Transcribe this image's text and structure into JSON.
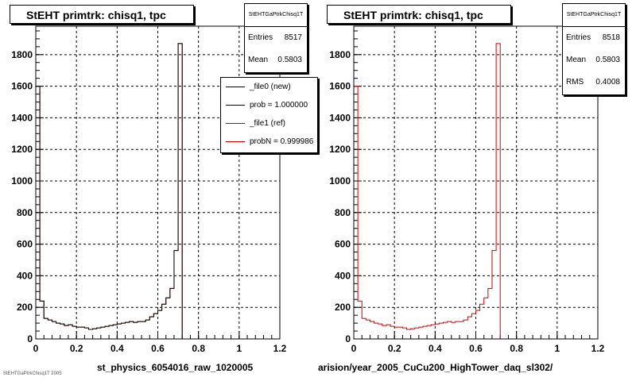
{
  "panels": [
    {
      "title": "StEHT primtrk: chisq1, tpc",
      "stats": {
        "name": "StEHTGaPtrkChisq1T",
        "rows": [
          {
            "label": "Entries",
            "value": "8517"
          },
          {
            "label": "Mean",
            "value": "0.5803"
          }
        ]
      },
      "x_caption": "st_physics_6054016_raw_1020005",
      "legend": [
        {
          "label": "_file0 (new)",
          "color": "#000000"
        },
        {
          "label": "prob = 1.000000",
          "color": "#000000"
        },
        {
          "label": "_file1 (ref)",
          "color": "#cc0000"
        },
        {
          "label": "probN = 0.999986",
          "color": "#cc0000"
        }
      ]
    },
    {
      "title": "StEHT primtrk: chisq1, tpc",
      "stats": {
        "name": "StEHTGaPtrkChisq1T",
        "rows": [
          {
            "label": "Entries",
            "value": "8518"
          },
          {
            "label": "Mean",
            "value": "0.5803"
          },
          {
            "label": "RMS",
            "value": "0.4008"
          }
        ]
      },
      "x_caption": "arision/year_2005_CuCu200_HighTower_daq_sl302/"
    }
  ],
  "footer_small": "StEHTGaPtrkChisq1T 2005",
  "chart_data": [
    {
      "type": "bar",
      "title": "StEHT primtrk: chisq1, tpc",
      "xlim": [
        0,
        1.2
      ],
      "ylim": [
        0,
        1980
      ],
      "x_ticks": [
        "0",
        "0.2",
        "0.4",
        "0.6",
        "0.8",
        "1",
        "1.2"
      ],
      "y_ticks": [
        "0",
        "200",
        "400",
        "600",
        "800",
        "1000",
        "1200",
        "1400",
        "1600",
        "1800"
      ],
      "grid": true,
      "bin_width": 0.02,
      "x_start": 0,
      "series": [
        {
          "name": "_file1 (ref)",
          "color": "#cc0000",
          "values": [
            1600,
            240,
            130,
            120,
            110,
            100,
            95,
            85,
            90,
            80,
            75,
            75,
            70,
            60,
            65,
            70,
            75,
            80,
            85,
            90,
            95,
            100,
            105,
            110,
            105,
            110,
            110,
            120,
            140,
            160,
            180,
            220,
            260,
            320,
            560,
            1870,
            0,
            0,
            0,
            0,
            0,
            0,
            0,
            0,
            0,
            0,
            0,
            0,
            0,
            0,
            0,
            0,
            0,
            0,
            0,
            0,
            0,
            0,
            0,
            0
          ]
        },
        {
          "name": "_file0 (new)",
          "color": "#000000",
          "values": [
            1600,
            240,
            130,
            120,
            110,
            100,
            95,
            85,
            90,
            80,
            75,
            75,
            70,
            60,
            65,
            70,
            75,
            80,
            85,
            90,
            95,
            100,
            105,
            110,
            105,
            110,
            110,
            120,
            140,
            160,
            180,
            220,
            260,
            320,
            560,
            1870,
            0,
            0,
            0,
            0,
            0,
            0,
            0,
            0,
            0,
            0,
            0,
            0,
            0,
            0,
            0,
            0,
            0,
            0,
            0,
            0,
            0,
            0,
            0,
            0
          ]
        }
      ]
    },
    {
      "type": "bar",
      "title": "StEHT primtrk: chisq1, tpc",
      "xlim": [
        0,
        1.2
      ],
      "ylim": [
        0,
        1980
      ],
      "x_ticks": [
        "0",
        "0.2",
        "0.4",
        "0.6",
        "0.8",
        "1",
        "1.2"
      ],
      "y_ticks": [
        "0",
        "200",
        "400",
        "600",
        "800",
        "1000",
        "1200",
        "1400",
        "1600",
        "1800"
      ],
      "grid": true,
      "bin_width": 0.02,
      "x_start": 0,
      "series": [
        {
          "name": "",
          "color": "#cc0000",
          "values": [
            1600,
            240,
            130,
            120,
            110,
            100,
            95,
            85,
            90,
            80,
            75,
            75,
            70,
            60,
            65,
            70,
            75,
            80,
            85,
            90,
            95,
            100,
            105,
            110,
            105,
            110,
            110,
            120,
            140,
            160,
            180,
            220,
            260,
            320,
            560,
            1870,
            0,
            0,
            0,
            0,
            0,
            0,
            0,
            0,
            0,
            0,
            0,
            0,
            0,
            0,
            0,
            0,
            0,
            0,
            0,
            0,
            0,
            0,
            0,
            0
          ]
        }
      ]
    }
  ]
}
